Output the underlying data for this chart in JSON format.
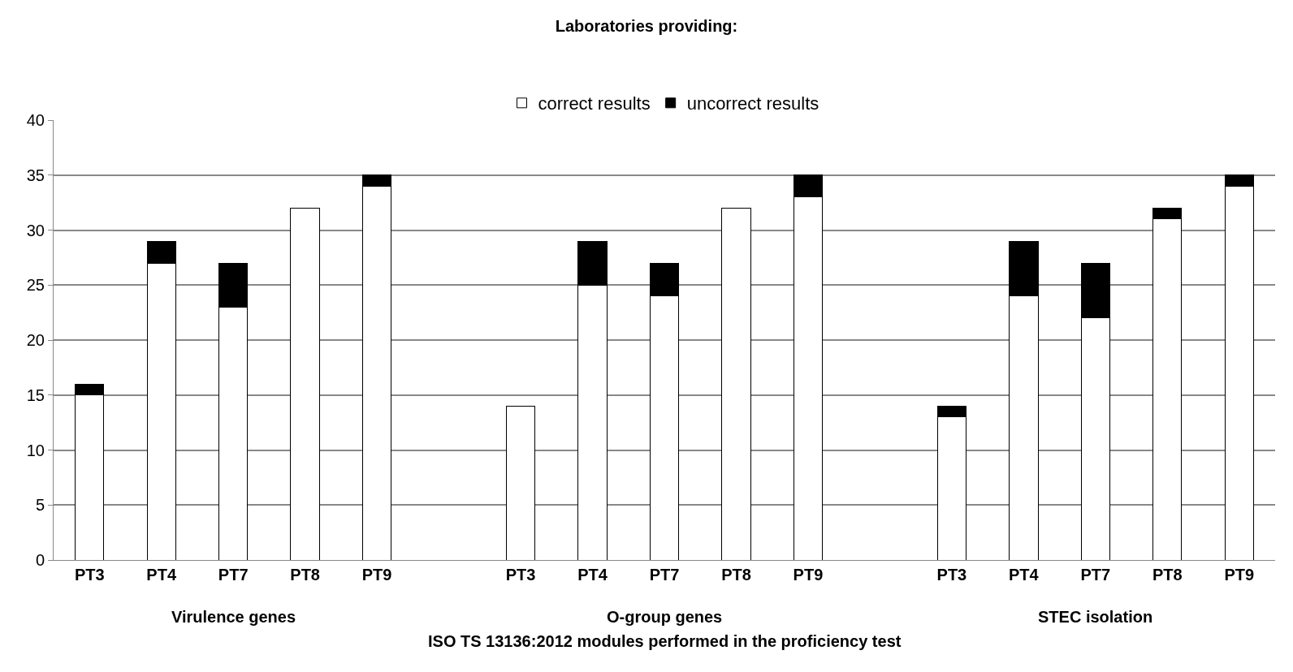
{
  "chart_data": {
    "type": "bar",
    "title": "Laboratories providing:",
    "xlabel": "ISO TS 13136:2012 modules performed in the proficiency test",
    "categories": [
      "PT3",
      "PT4",
      "PT7",
      "PT8",
      "PT9",
      null,
      "PT3",
      "PT4",
      "PT7",
      "PT8",
      "PT9",
      null,
      "PT3",
      "PT4",
      "PT7",
      "PT8",
      "PT9"
    ],
    "annotations": [
      "Virulence genes",
      "O-group genes",
      "STEC isolation"
    ],
    "stacked": true,
    "series": [
      {
        "name": "correct results",
        "color": "#ffffff",
        "values": [
          15,
          27,
          23,
          32,
          34,
          null,
          14,
          25,
          24,
          32,
          33,
          null,
          13,
          24,
          22,
          31,
          34
        ]
      },
      {
        "name": "uncorrect results",
        "color": "#000000",
        "values": [
          1,
          2,
          4,
          0,
          1,
          null,
          0,
          4,
          3,
          0,
          2,
          null,
          1,
          5,
          5,
          1,
          1
        ]
      }
    ],
    "ylim": [
      0,
      40
    ],
    "yticks": [
      0,
      5,
      10,
      15,
      20,
      25,
      30,
      35,
      40
    ],
    "grid": "y",
    "legend": "top"
  }
}
